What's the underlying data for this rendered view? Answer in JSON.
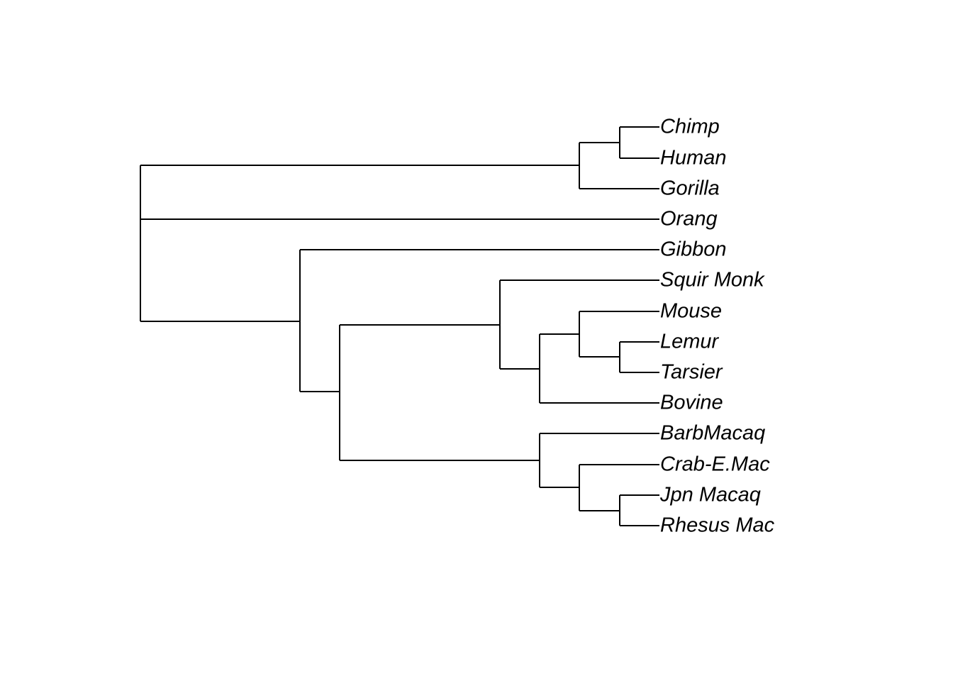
{
  "tree": {
    "tips": [
      {
        "id": "chimp",
        "label": "Chimp"
      },
      {
        "id": "human",
        "label": "Human"
      },
      {
        "id": "gorilla",
        "label": "Gorilla"
      },
      {
        "id": "orang",
        "label": "Orang"
      },
      {
        "id": "gibbon",
        "label": "Gibbon"
      },
      {
        "id": "squir-monk",
        "label": "Squir Monk"
      },
      {
        "id": "mouse",
        "label": "Mouse"
      },
      {
        "id": "lemur",
        "label": "Lemur"
      },
      {
        "id": "tarsier",
        "label": "Tarsier"
      },
      {
        "id": "bovine",
        "label": "Bovine"
      },
      {
        "id": "barbmacaq",
        "label": "BarbMacaq"
      },
      {
        "id": "crab-e-mac",
        "label": "Crab-E.Mac"
      },
      {
        "id": "jpn-macaq",
        "label": "Jpn Macaq"
      },
      {
        "id": "rhesus-mac",
        "label": "Rhesus Mac"
      }
    ]
  }
}
